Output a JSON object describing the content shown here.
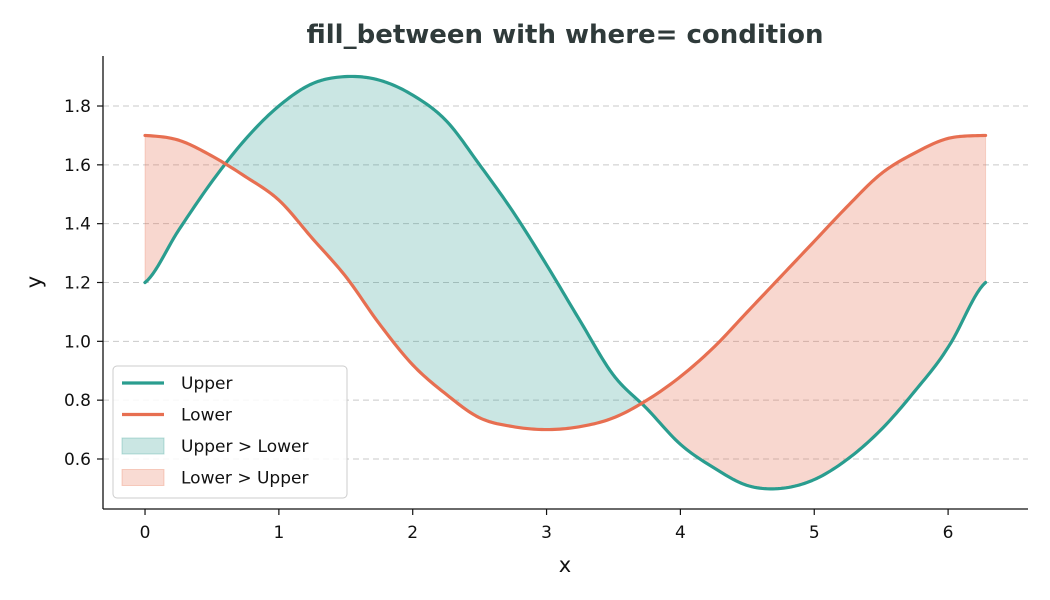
{
  "chart_data": {
    "type": "area",
    "title": "fill_between with where= condition",
    "xlabel": "x",
    "ylabel": "y",
    "xlim": [
      -0.314,
      6.597
    ],
    "ylim": [
      0.43,
      1.97
    ],
    "xticks": [
      0,
      1,
      2,
      3,
      4,
      5,
      6
    ],
    "yticks": [
      0.6,
      0.8,
      1.0,
      1.2,
      1.4,
      1.6,
      1.8
    ],
    "ytick_labels": [
      "0.6",
      "0.8",
      "1.0",
      "1.2",
      "1.4",
      "1.6",
      "1.8"
    ],
    "grid": "y-dashed",
    "legend_position": "lower-left",
    "series": [
      {
        "name": "Upper",
        "color": "#2a9d8f",
        "x": [
          0,
          0.25,
          0.5,
          0.75,
          1,
          1.25,
          1.5,
          1.75,
          2,
          2.25,
          2.5,
          2.75,
          3,
          3.25,
          3.5,
          3.75,
          4,
          4.25,
          4.5,
          4.75,
          5,
          5.25,
          5.5,
          5.75,
          6,
          6.28
        ],
        "y": [
          1.2,
          1.377,
          1.543,
          1.687,
          1.8,
          1.876,
          1.9,
          1.888,
          1.837,
          1.75,
          1.6,
          1.44,
          1.26,
          1.07,
          0.885,
          0.771,
          0.65,
          0.57,
          0.51,
          0.5,
          0.53,
          0.6,
          0.7,
          0.83,
          0.98,
          1.2
        ]
      },
      {
        "name": "Lower",
        "color": "#e76f51",
        "x": [
          0,
          0.25,
          0.5,
          0.75,
          1,
          1.25,
          1.5,
          1.75,
          2,
          2.25,
          2.5,
          2.75,
          3,
          3.25,
          3.5,
          3.75,
          4,
          4.25,
          4.5,
          4.75,
          5,
          5.25,
          5.5,
          5.75,
          6,
          6.28
        ],
        "y": [
          1.7,
          1.684,
          1.63,
          1.56,
          1.48,
          1.35,
          1.22,
          1.06,
          0.92,
          0.82,
          0.74,
          0.71,
          0.7,
          0.71,
          0.74,
          0.8,
          0.88,
          0.98,
          1.1,
          1.22,
          1.34,
          1.46,
          1.57,
          1.64,
          1.69,
          1.7
        ]
      }
    ],
    "fills": [
      {
        "name": "Upper > Lower",
        "color": "#2a9d8f",
        "opacity": 0.25,
        "condition": "upper>lower"
      },
      {
        "name": "Lower > Upper",
        "color": "#e76f51",
        "opacity": 0.28,
        "condition": "lower>upper"
      }
    ],
    "legend": [
      {
        "label": "Upper",
        "kind": "line",
        "color": "#2a9d8f"
      },
      {
        "label": "Lower",
        "kind": "line",
        "color": "#e76f51"
      },
      {
        "label": "Upper > Lower",
        "kind": "patch",
        "color": "#2a9d8f"
      },
      {
        "label": "Lower > Upper",
        "kind": "patch",
        "color": "#e76f51"
      }
    ]
  }
}
